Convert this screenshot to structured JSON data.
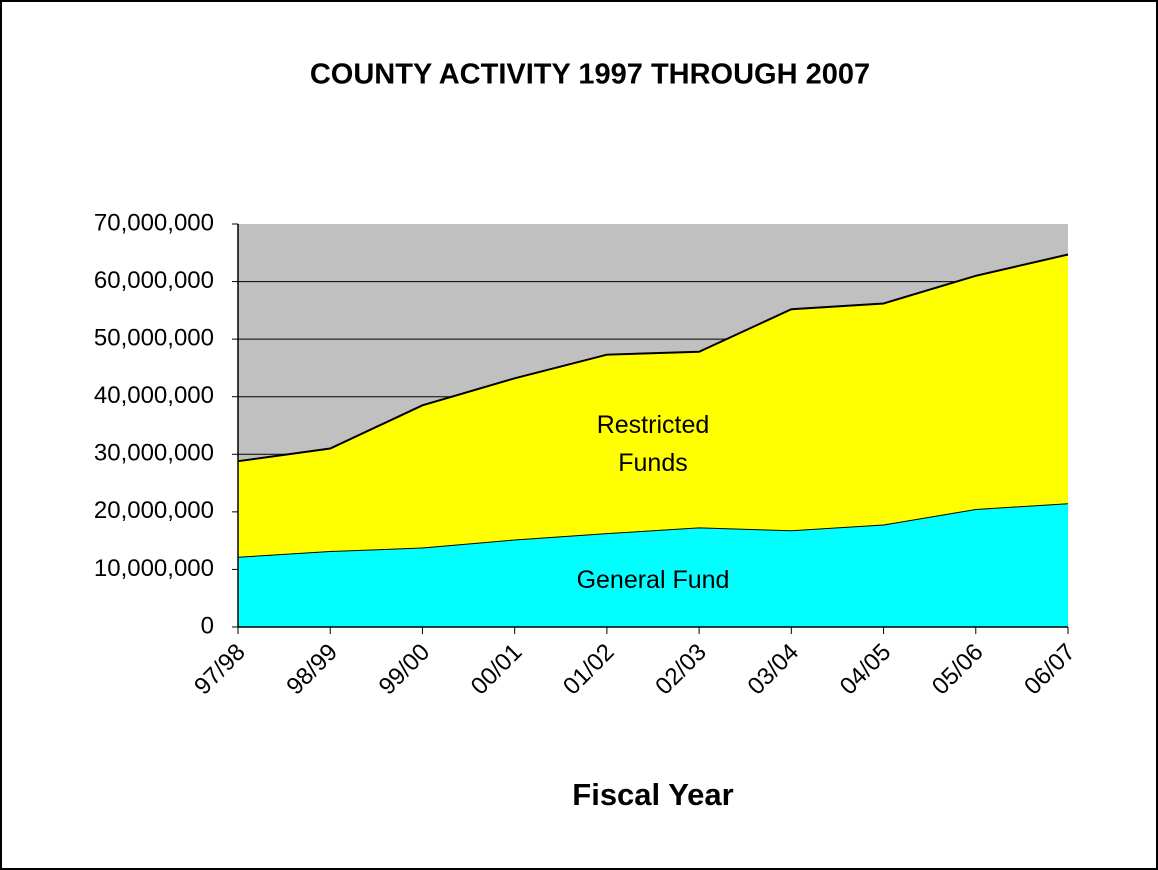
{
  "chart_data": {
    "type": "stacked_area",
    "title": "COUNTY ACTIVITY 1997 THROUGH 2007",
    "x_label": "Fiscal Year",
    "categories": [
      "97/98",
      "98/99",
      "99/00",
      "00/01",
      "01/02",
      "02/03",
      "03/04",
      "04/05",
      "05/06",
      "06/07"
    ],
    "series": [
      {
        "name": "General Fund",
        "color": "#00ffff",
        "values": [
          12200000,
          13200000,
          13800000,
          15200000,
          16300000,
          17300000,
          16800000,
          17800000,
          20500000,
          21500000
        ]
      },
      {
        "name": "Restricted Funds",
        "color": "#ffff00",
        "values": [
          16600000,
          17800000,
          24700000,
          28000000,
          31000000,
          30500000,
          38400000,
          38400000,
          40500000,
          43200000
        ]
      }
    ],
    "ylim": [
      0,
      70000000
    ],
    "yticks": [
      0,
      {
        "value": 10000000,
        "label": "10,000,000"
      },
      {
        "value": 20000000,
        "label": "20,000,000"
      },
      {
        "value": 30000000,
        "label": "30,000,000"
      },
      {
        "value": 40000000,
        "label": "40,000,000"
      },
      {
        "value": 50000000,
        "label": "50,000,000"
      },
      {
        "value": 60000000,
        "label": "60,000,000"
      },
      {
        "value": 70000000,
        "label": "70,000,000"
      }
    ],
    "grid": true,
    "plot_background": "#c0c0c0"
  }
}
